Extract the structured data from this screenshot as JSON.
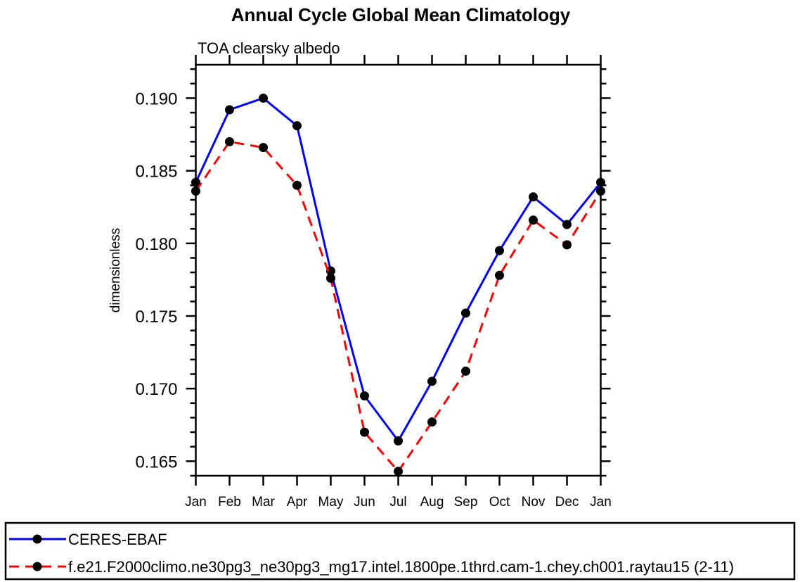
{
  "chart_data": {
    "type": "line",
    "title": "Annual Cycle Global Mean Climatology",
    "subtitle": "TOA clearsky albedo",
    "ylabel": "dimensionless",
    "categories": [
      "Jan",
      "Feb",
      "Mar",
      "Apr",
      "May",
      "Jun",
      "Jul",
      "Aug",
      "Sep",
      "Oct",
      "Nov",
      "Dec",
      "Jan"
    ],
    "series": [
      {
        "name": "CERES-EBAF",
        "color": "#0000ff",
        "line_style": "solid",
        "marker": "filled-circle",
        "marker_color": "#000000",
        "values": [
          0.1842,
          0.1892,
          0.19,
          0.1881,
          0.1781,
          0.1695,
          0.1664,
          0.1705,
          0.1752,
          0.1795,
          0.1832,
          0.1813,
          0.1842
        ]
      },
      {
        "name": "f.e21.F2000climo.ne30pg3_ne30pg3_mg17.intel.1800pe.1thrd.cam-1.chey.ch001.raytau15 (2-11)",
        "color": "#ff0000",
        "line_style": "dashed",
        "marker": "filled-circle",
        "marker_color": "#000000",
        "values": [
          0.1836,
          0.187,
          0.1866,
          0.184,
          0.1776,
          0.167,
          0.1643,
          0.1677,
          0.1712,
          0.1778,
          0.1816,
          0.1799,
          0.1836
        ]
      }
    ],
    "ylim": [
      0.164,
      0.1923
    ],
    "yticks_major": [
      0.165,
      0.17,
      0.175,
      0.18,
      0.185,
      0.19
    ],
    "ytick_labels": [
      "0.165",
      "0.170",
      "0.175",
      "0.180",
      "0.185",
      "0.190"
    ],
    "y_minor_step": 0.001,
    "grid": "off",
    "legend_position": "bottom",
    "axis_color": "#000000",
    "background_color": "#ffffff"
  }
}
